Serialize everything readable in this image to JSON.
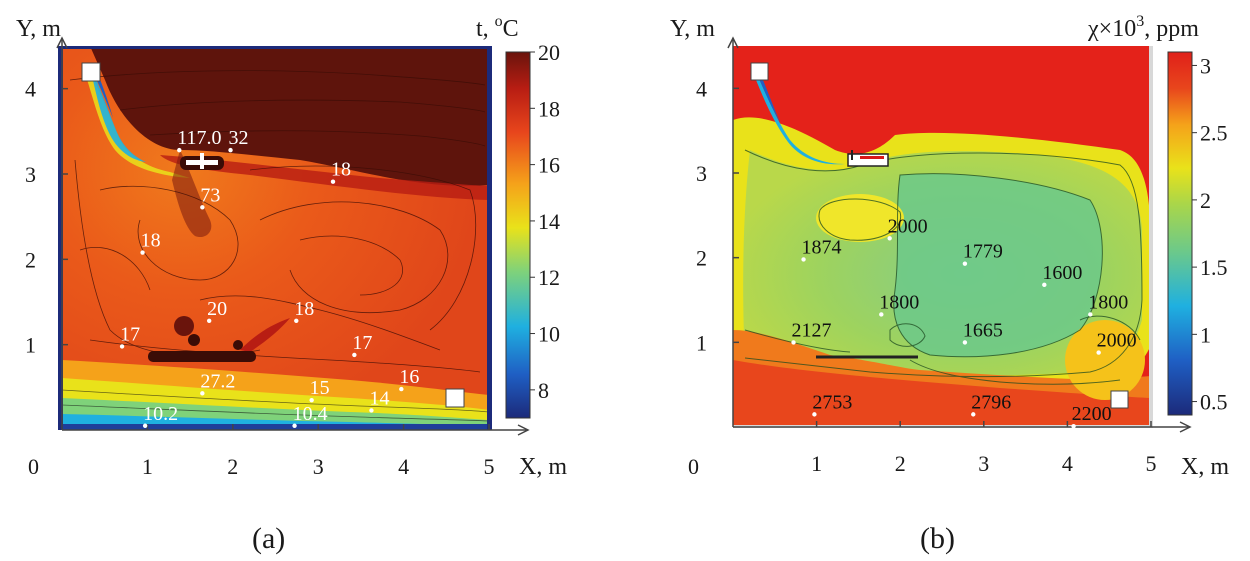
{
  "chart_data": [
    {
      "panel": "(a)",
      "type": "heatmap",
      "xlabel": "X, m",
      "ylabel": "Y, m",
      "origin_label": "0",
      "xticks": [
        1,
        2,
        3,
        4,
        5
      ],
      "yticks": [
        1,
        2,
        3,
        4
      ],
      "xlim": [
        0,
        5
      ],
      "ylim": [
        0,
        4.5
      ],
      "colorbar": {
        "label": "t, °C",
        "label_main": "t, ",
        "label_sup": "o",
        "label_unit": "C",
        "ticks": [
          20,
          18,
          16,
          14,
          12,
          10,
          8
        ],
        "range": [
          7,
          20
        ],
        "colors": [
          "#1c2a7a",
          "#1f5fc4",
          "#1fb0e0",
          "#7fd27a",
          "#e9e21a",
          "#f5a21a",
          "#e8461c",
          "#b81d13",
          "#6a140c"
        ]
      },
      "annotations": [
        {
          "text": "117.0",
          "x": 1.35,
          "y": 3.35
        },
        {
          "text": "32",
          "x": 1.95,
          "y": 3.35
        },
        {
          "text": "18",
          "x": 3.15,
          "y": 2.98
        },
        {
          "text": "73",
          "x": 1.62,
          "y": 2.68
        },
        {
          "text": "18",
          "x": 0.92,
          "y": 2.15
        },
        {
          "text": "20",
          "x": 1.7,
          "y": 1.35
        },
        {
          "text": "18",
          "x": 2.72,
          "y": 1.35
        },
        {
          "text": "17",
          "x": 0.68,
          "y": 1.05
        },
        {
          "text": "17",
          "x": 3.4,
          "y": 0.95
        },
        {
          "text": "27.2",
          "x": 1.62,
          "y": 0.5
        },
        {
          "text": "16",
          "x": 3.95,
          "y": 0.55
        },
        {
          "text": "15",
          "x": 2.9,
          "y": 0.42
        },
        {
          "text": "14",
          "x": 3.6,
          "y": 0.3
        },
        {
          "text": "10.2",
          "x": 0.95,
          "y": 0.12
        },
        {
          "text": "10.4",
          "x": 2.7,
          "y": 0.12
        }
      ],
      "caption": "(a)"
    },
    {
      "panel": "(b)",
      "type": "heatmap",
      "xlabel": "X, m",
      "ylabel": "Y, m",
      "origin_label": "0",
      "xticks": [
        1,
        2,
        3,
        4,
        5
      ],
      "yticks": [
        1,
        2,
        3,
        4
      ],
      "xlim": [
        0,
        5
      ],
      "ylim": [
        0,
        4.5
      ],
      "colorbar": {
        "label": "χ×10³, ppm",
        "label_main": "χ×10",
        "label_sup": "3",
        "label_unit": ", ppm",
        "ticks": [
          3,
          2.5,
          2,
          1.5,
          1,
          0.5
        ],
        "range": [
          0.4,
          3.1
        ],
        "colors": [
          "#1c2a7a",
          "#1f5fc4",
          "#1fb0e0",
          "#6cc98a",
          "#a9d64a",
          "#e9e21a",
          "#f5a21a",
          "#e8461c",
          "#e0201a"
        ]
      },
      "annotations": [
        {
          "text": "2000",
          "x": 1.85,
          "y": 2.3
        },
        {
          "text": "1874",
          "x": 0.82,
          "y": 2.05
        },
        {
          "text": "1779",
          "x": 2.75,
          "y": 2.0
        },
        {
          "text": "1600",
          "x": 3.7,
          "y": 1.75
        },
        {
          "text": "1800",
          "x": 1.75,
          "y": 1.4
        },
        {
          "text": "1800",
          "x": 4.25,
          "y": 1.4
        },
        {
          "text": "2127",
          "x": 0.7,
          "y": 1.07
        },
        {
          "text": "1665",
          "x": 2.75,
          "y": 1.07
        },
        {
          "text": "2000",
          "x": 4.35,
          "y": 0.95
        },
        {
          "text": "2753",
          "x": 0.95,
          "y": 0.22
        },
        {
          "text": "2796",
          "x": 2.85,
          "y": 0.22
        },
        {
          "text": "2200",
          "x": 4.05,
          "y": 0.08
        }
      ],
      "caption": "(b)"
    }
  ]
}
